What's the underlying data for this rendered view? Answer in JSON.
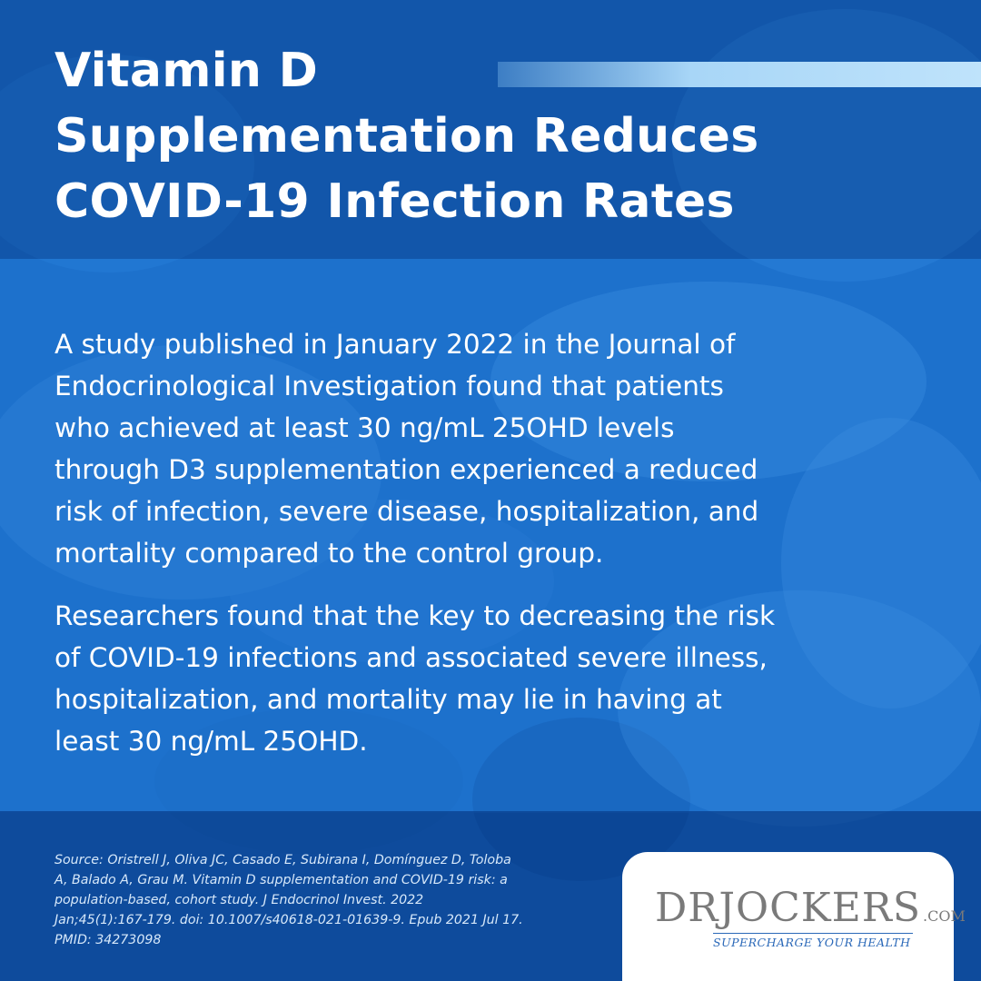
{
  "title": {
    "lines": [
      "Vitamin D",
      "Supplementation Reduces",
      "COVID-19 Infection Rates"
    ]
  },
  "paragraph1": {
    "lines": [
      "A study published in January 2022 in the Journal of",
      "Endocrinological Investigation found that patients",
      "who achieved at least 30 ng/mL 25OHD levels",
      "through D3 supplementation experienced a reduced",
      "risk of infection, severe disease, hospitalization, and",
      "mortality compared to the control group."
    ]
  },
  "paragraph2": {
    "lines": [
      "Researchers found that the key to decreasing the risk",
      "of COVID-19 infections and associated severe illness,",
      "hospitalization, and mortality may lie in having at",
      "least 30 ng/mL 25OHD."
    ]
  },
  "source": {
    "lines": [
      "Source: Oristrell J, Oliva JC, Casado E, Subirana I, Domínguez D, Toloba",
      "A, Balado A, Grau M. Vitamin D supplementation and COVID-19 risk: a",
      "population-based, cohort study. J Endocrinol Invest. 2022",
      "Jan;45(1):167-179. doi: 10.1007/s40618-021-01639-9. Epub 2021 Jul 17.",
      "PMID: 34273098"
    ]
  },
  "logo": {
    "brand": "DRJOCKERS",
    "suffix": ".COM",
    "tagline": "SUPERCHARGE YOUR HEALTH"
  },
  "colors": {
    "accent": "#a8d6f7",
    "background": "#1f6fc8",
    "logo_blue": "#2a68b8",
    "logo_gray": "#7a7a7a"
  }
}
